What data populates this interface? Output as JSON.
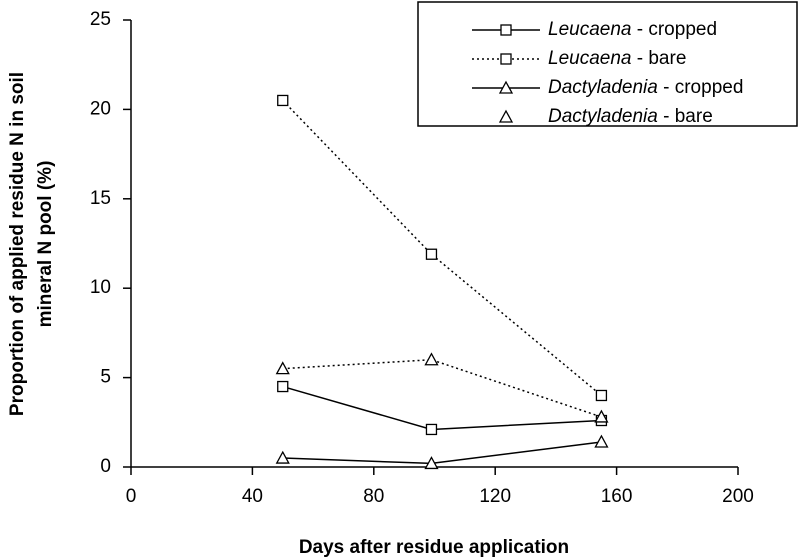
{
  "chart_data": {
    "type": "line",
    "x_label": "Days after residue application",
    "y_label": [
      "Proportion of applied residue N in soil",
      "mineral N pool (%)"
    ],
    "xlim": [
      0,
      200
    ],
    "xticks": [
      0,
      40,
      80,
      120,
      160,
      200
    ],
    "ylim": [
      0,
      25
    ],
    "yticks": [
      0,
      5,
      10,
      15,
      20,
      25
    ],
    "grid": false,
    "legend": "upper right",
    "x": [
      50,
      99,
      155
    ],
    "series": [
      {
        "name": "Leucaena - cropped",
        "color": "#000000",
        "line": "solid",
        "marker": "square",
        "values": [
          4.5,
          2.1,
          2.6
        ]
      },
      {
        "name": "Leucaena - bare",
        "color": "#000000",
        "line": "dotted",
        "marker": "square",
        "values": [
          20.5,
          11.9,
          4.0
        ]
      },
      {
        "name": "Dactyladenia - cropped",
        "color": "#000000",
        "line": "solid",
        "marker": "triangle",
        "values": [
          0.5,
          0.2,
          1.4
        ]
      },
      {
        "name": "Dactyladenia - bare",
        "color": "#000000",
        "line": "dotted",
        "legend_line": false,
        "marker": "triangle",
        "values": [
          5.5,
          6.0,
          2.8
        ]
      }
    ]
  }
}
